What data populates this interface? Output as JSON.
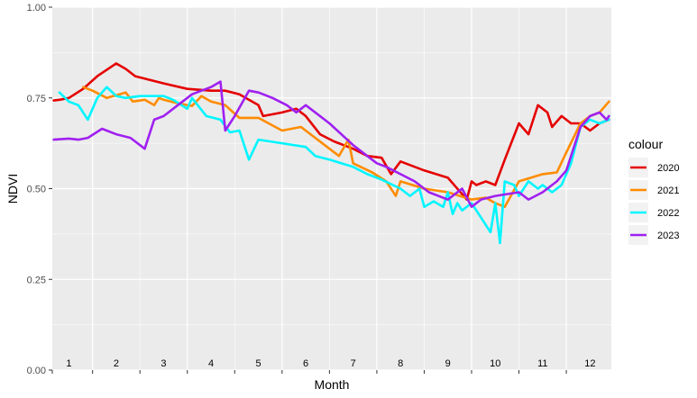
{
  "chart_data": {
    "type": "line",
    "xlabel": "Month",
    "ylabel": "NDVI",
    "ylim": [
      0,
      1
    ],
    "xlim": [
      0.65,
      12.45
    ],
    "yticks": [
      0.0,
      0.25,
      0.5,
      0.75,
      1.0
    ],
    "ytick_labels": [
      "0.00",
      "0.25",
      "0.50",
      "0.75",
      "1.00"
    ],
    "month_labels": [
      "1",
      "2",
      "3",
      "4",
      "5",
      "6",
      "7",
      "8",
      "9",
      "10",
      "11",
      "12"
    ],
    "grid": true,
    "legend_title": "colour",
    "legend_position": "right",
    "series": [
      {
        "name": "2020",
        "color": "#e50000",
        "points": [
          [
            0.68,
            0.743
          ],
          [
            0.8,
            0.745
          ],
          [
            1.0,
            0.75
          ],
          [
            1.3,
            0.775
          ],
          [
            1.6,
            0.81
          ],
          [
            2.0,
            0.845
          ],
          [
            2.2,
            0.83
          ],
          [
            2.4,
            0.81
          ],
          [
            3.0,
            0.79
          ],
          [
            3.5,
            0.775
          ],
          [
            4.0,
            0.77
          ],
          [
            4.3,
            0.77
          ],
          [
            4.6,
            0.76
          ],
          [
            5.0,
            0.73
          ],
          [
            5.1,
            0.7
          ],
          [
            5.5,
            0.71
          ],
          [
            5.8,
            0.72
          ],
          [
            6.0,
            0.7
          ],
          [
            6.3,
            0.65
          ],
          [
            6.6,
            0.63
          ],
          [
            7.0,
            0.61
          ],
          [
            7.3,
            0.59
          ],
          [
            7.6,
            0.585
          ],
          [
            7.8,
            0.54
          ],
          [
            8.0,
            0.575
          ],
          [
            8.5,
            0.55
          ],
          [
            9.0,
            0.53
          ],
          [
            9.4,
            0.47
          ],
          [
            9.5,
            0.52
          ],
          [
            9.6,
            0.51
          ],
          [
            9.8,
            0.52
          ],
          [
            10.0,
            0.51
          ],
          [
            10.2,
            0.58
          ],
          [
            10.5,
            0.68
          ],
          [
            10.7,
            0.65
          ],
          [
            10.9,
            0.73
          ],
          [
            11.1,
            0.71
          ],
          [
            11.2,
            0.67
          ],
          [
            11.4,
            0.7
          ],
          [
            11.6,
            0.68
          ],
          [
            11.8,
            0.68
          ],
          [
            12.0,
            0.66
          ],
          [
            12.2,
            0.68
          ],
          [
            12.4,
            0.69
          ]
        ]
      },
      {
        "name": "2021",
        "color": "#ff8c00",
        "points": [
          [
            1.3,
            0.78
          ],
          [
            1.5,
            0.77
          ],
          [
            1.8,
            0.75
          ],
          [
            2.2,
            0.765
          ],
          [
            2.35,
            0.74
          ],
          [
            2.6,
            0.745
          ],
          [
            2.8,
            0.73
          ],
          [
            2.9,
            0.75
          ],
          [
            3.0,
            0.745
          ],
          [
            3.3,
            0.735
          ],
          [
            3.6,
            0.728
          ],
          [
            3.8,
            0.755
          ],
          [
            4.0,
            0.74
          ],
          [
            4.3,
            0.73
          ],
          [
            4.6,
            0.695
          ],
          [
            5.0,
            0.695
          ],
          [
            5.5,
            0.66
          ],
          [
            5.9,
            0.67
          ],
          [
            6.5,
            0.61
          ],
          [
            6.7,
            0.59
          ],
          [
            6.9,
            0.635
          ],
          [
            7.0,
            0.57
          ],
          [
            7.4,
            0.545
          ],
          [
            7.7,
            0.52
          ],
          [
            7.9,
            0.48
          ],
          [
            8.0,
            0.52
          ],
          [
            8.5,
            0.5
          ],
          [
            9.0,
            0.49
          ],
          [
            9.5,
            0.47
          ],
          [
            9.8,
            0.475
          ],
          [
            10.0,
            0.46
          ],
          [
            10.2,
            0.45
          ],
          [
            10.5,
            0.52
          ],
          [
            11.0,
            0.54
          ],
          [
            11.3,
            0.545
          ],
          [
            11.5,
            0.6
          ],
          [
            11.8,
            0.68
          ],
          [
            12.0,
            0.7
          ],
          [
            12.2,
            0.71
          ],
          [
            12.4,
            0.74
          ]
        ]
      },
      {
        "name": "2022",
        "color": "#00f5ff",
        "points": [
          [
            0.8,
            0.765
          ],
          [
            1.0,
            0.74
          ],
          [
            1.2,
            0.73
          ],
          [
            1.4,
            0.69
          ],
          [
            1.6,
            0.75
          ],
          [
            1.8,
            0.78
          ],
          [
            2.0,
            0.755
          ],
          [
            2.2,
            0.75
          ],
          [
            2.5,
            0.755
          ],
          [
            3.0,
            0.755
          ],
          [
            3.2,
            0.745
          ],
          [
            3.5,
            0.72
          ],
          [
            3.6,
            0.75
          ],
          [
            3.9,
            0.7
          ],
          [
            4.2,
            0.69
          ],
          [
            4.4,
            0.655
          ],
          [
            4.6,
            0.66
          ],
          [
            4.8,
            0.58
          ],
          [
            5.0,
            0.635
          ],
          [
            5.5,
            0.625
          ],
          [
            6.0,
            0.615
          ],
          [
            6.2,
            0.59
          ],
          [
            6.5,
            0.58
          ],
          [
            7.0,
            0.56
          ],
          [
            7.3,
            0.54
          ],
          [
            7.6,
            0.525
          ],
          [
            8.0,
            0.5
          ],
          [
            8.2,
            0.48
          ],
          [
            8.4,
            0.5
          ],
          [
            8.5,
            0.45
          ],
          [
            8.7,
            0.465
          ],
          [
            8.9,
            0.45
          ],
          [
            9.0,
            0.49
          ],
          [
            9.1,
            0.43
          ],
          [
            9.2,
            0.46
          ],
          [
            9.3,
            0.44
          ],
          [
            9.5,
            0.46
          ],
          [
            9.7,
            0.42
          ],
          [
            9.9,
            0.38
          ],
          [
            10.0,
            0.46
          ],
          [
            10.1,
            0.35
          ],
          [
            10.2,
            0.52
          ],
          [
            10.4,
            0.51
          ],
          [
            10.5,
            0.48
          ],
          [
            10.7,
            0.52
          ],
          [
            10.9,
            0.5
          ],
          [
            11.0,
            0.51
          ],
          [
            11.2,
            0.49
          ],
          [
            11.4,
            0.51
          ],
          [
            11.6,
            0.57
          ],
          [
            11.8,
            0.67
          ],
          [
            12.0,
            0.69
          ],
          [
            12.2,
            0.68
          ],
          [
            12.4,
            0.69
          ]
        ]
      },
      {
        "name": "2023",
        "color": "#a020f0",
        "points": [
          [
            0.68,
            0.635
          ],
          [
            1.0,
            0.638
          ],
          [
            1.2,
            0.635
          ],
          [
            1.4,
            0.64
          ],
          [
            1.7,
            0.665
          ],
          [
            2.0,
            0.65
          ],
          [
            2.3,
            0.64
          ],
          [
            2.6,
            0.61
          ],
          [
            2.8,
            0.69
          ],
          [
            3.0,
            0.7
          ],
          [
            3.3,
            0.73
          ],
          [
            3.6,
            0.76
          ],
          [
            4.0,
            0.78
          ],
          [
            4.2,
            0.795
          ],
          [
            4.3,
            0.66
          ],
          [
            4.5,
            0.7
          ],
          [
            4.8,
            0.77
          ],
          [
            5.0,
            0.765
          ],
          [
            5.3,
            0.75
          ],
          [
            5.6,
            0.73
          ],
          [
            5.8,
            0.71
          ],
          [
            6.0,
            0.73
          ],
          [
            6.5,
            0.68
          ],
          [
            7.0,
            0.62
          ],
          [
            7.5,
            0.57
          ],
          [
            7.7,
            0.56
          ],
          [
            8.0,
            0.54
          ],
          [
            8.3,
            0.52
          ],
          [
            8.6,
            0.49
          ],
          [
            8.8,
            0.48
          ],
          [
            9.0,
            0.47
          ],
          [
            9.3,
            0.5
          ],
          [
            9.5,
            0.45
          ],
          [
            9.7,
            0.47
          ],
          [
            10.0,
            0.48
          ],
          [
            10.5,
            0.49
          ],
          [
            10.7,
            0.47
          ],
          [
            11.0,
            0.49
          ],
          [
            11.3,
            0.52
          ],
          [
            11.5,
            0.55
          ],
          [
            11.8,
            0.67
          ],
          [
            12.0,
            0.7
          ],
          [
            12.2,
            0.71
          ],
          [
            12.35,
            0.69
          ],
          [
            12.4,
            0.7
          ]
        ]
      }
    ]
  }
}
